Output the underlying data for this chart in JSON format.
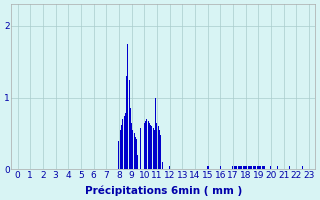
{
  "xlabel": "Précipitations 6min ( mm )",
  "bar_color": "#0000cc",
  "background_color": "#d8f4f4",
  "grid_color": "#aacccc",
  "tick_color": "#0000aa",
  "ylim": [
    0,
    2.3
  ],
  "xlim": [
    -0.5,
    23.5
  ],
  "yticks": [
    0,
    1,
    2
  ],
  "ytick_labels": [
    "0",
    "1",
    "2"
  ],
  "xticks": [
    0,
    1,
    2,
    3,
    4,
    5,
    6,
    7,
    8,
    9,
    10,
    11,
    12,
    13,
    14,
    15,
    16,
    17,
    18,
    19,
    20,
    21,
    22,
    23
  ],
  "tick_fontsize": 6.5,
  "xlabel_fontsize": 7.5,
  "bar_width": 0.08,
  "bars": [
    [
      8.0,
      0.4
    ],
    [
      8.1,
      0.55
    ],
    [
      8.2,
      0.62
    ],
    [
      8.3,
      0.7
    ],
    [
      8.4,
      0.75
    ],
    [
      8.5,
      0.78
    ],
    [
      8.6,
      1.3
    ],
    [
      8.7,
      1.75
    ],
    [
      8.8,
      1.25
    ],
    [
      8.9,
      0.85
    ],
    [
      9.0,
      0.65
    ],
    [
      9.1,
      0.55
    ],
    [
      9.2,
      0.5
    ],
    [
      9.3,
      0.45
    ],
    [
      9.4,
      0.42
    ],
    [
      9.5,
      0.2
    ],
    [
      9.7,
      0.58
    ],
    [
      10.0,
      0.65
    ],
    [
      10.1,
      0.68
    ],
    [
      10.2,
      0.7
    ],
    [
      10.3,
      0.68
    ],
    [
      10.4,
      0.65
    ],
    [
      10.5,
      0.62
    ],
    [
      10.6,
      0.6
    ],
    [
      10.7,
      0.58
    ],
    [
      10.8,
      0.55
    ],
    [
      10.9,
      1.0
    ],
    [
      11.0,
      0.65
    ],
    [
      11.1,
      0.6
    ],
    [
      11.2,
      0.55
    ],
    [
      11.3,
      0.48
    ],
    [
      11.4,
      0.1
    ],
    [
      12.0,
      0.05
    ],
    [
      15.0,
      0.05
    ],
    [
      15.1,
      0.05
    ],
    [
      16.0,
      0.05
    ],
    [
      17.0,
      0.05
    ],
    [
      17.1,
      0.05
    ],
    [
      17.2,
      0.05
    ],
    [
      17.3,
      0.05
    ],
    [
      17.4,
      0.05
    ],
    [
      17.5,
      0.05
    ],
    [
      17.6,
      0.05
    ],
    [
      17.7,
      0.05
    ],
    [
      17.8,
      0.05
    ],
    [
      17.9,
      0.05
    ],
    [
      18.0,
      0.05
    ],
    [
      18.1,
      0.05
    ],
    [
      18.2,
      0.05
    ],
    [
      18.3,
      0.05
    ],
    [
      18.4,
      0.05
    ],
    [
      18.5,
      0.05
    ],
    [
      18.6,
      0.05
    ],
    [
      18.7,
      0.05
    ],
    [
      18.8,
      0.05
    ],
    [
      18.9,
      0.05
    ],
    [
      19.0,
      0.05
    ],
    [
      19.1,
      0.05
    ],
    [
      19.2,
      0.05
    ],
    [
      19.3,
      0.05
    ],
    [
      19.4,
      0.05
    ],
    [
      19.5,
      0.05
    ],
    [
      20.0,
      0.05
    ],
    [
      20.5,
      0.05
    ],
    [
      21.5,
      0.05
    ],
    [
      22.5,
      0.05
    ]
  ]
}
